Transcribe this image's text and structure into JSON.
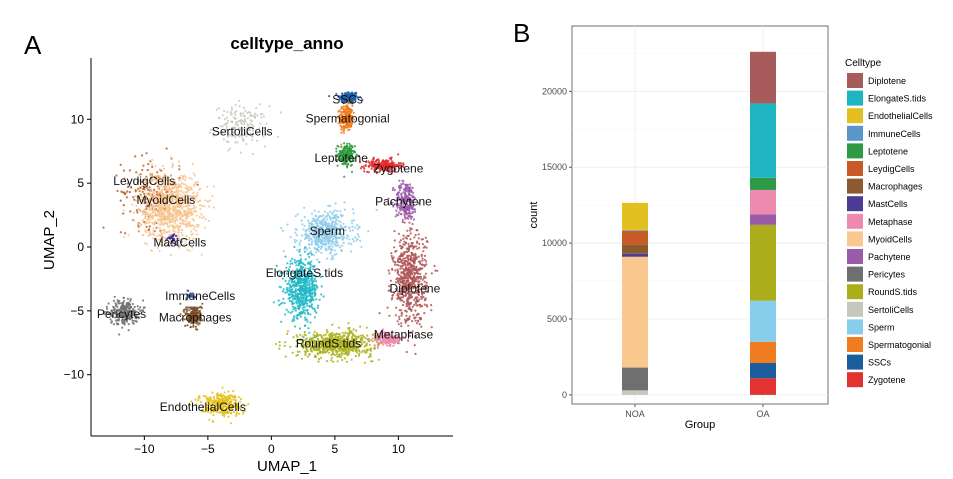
{
  "chart_data": [
    {
      "type": "scatter",
      "panel_label": "A",
      "title": "celltype_anno",
      "xlabel": "UMAP_1",
      "ylabel": "UMAP_2",
      "xlim": [
        -14.2,
        14.3
      ],
      "ylim": [
        -14.8,
        14.8
      ],
      "x_ticks": [
        -10,
        -5,
        0,
        5,
        10
      ],
      "x_tick_labels": [
        "−10",
        "−5",
        "0",
        "5",
        "10"
      ],
      "y_ticks": [
        10,
        5,
        0,
        -5,
        -10
      ],
      "y_tick_labels": [
        "10",
        "5",
        "0",
        "−5",
        "−10"
      ],
      "grid": false,
      "clusters": [
        {
          "name": "SSCs",
          "label": "SSCs",
          "color": "#1F5FA8",
          "center": [
            6.1,
            11.7
          ],
          "spread": [
            0.7,
            0.45
          ],
          "n": 160
        },
        {
          "name": "Spermatogonial",
          "label": "Spermatogonial",
          "color": "#F07A1A",
          "center": [
            5.9,
            10.1
          ],
          "spread": [
            0.45,
            0.9
          ],
          "n": 220
        },
        {
          "name": "SertoliCells",
          "label": "SertoliCells",
          "color": "#C9C9C3",
          "center": [
            -2.4,
            9.5
          ],
          "spread": [
            1.9,
            1.4
          ],
          "n": 170
        },
        {
          "name": "Leptotene",
          "label": "Leptotene",
          "color": "#2A9A3A",
          "center": [
            5.9,
            7.2
          ],
          "spread": [
            0.6,
            0.8
          ],
          "n": 170
        },
        {
          "name": "Zygotene",
          "label": "Zygotene",
          "color": "#E02A2A",
          "center": [
            8.8,
            6.4
          ],
          "spread": [
            1.3,
            0.45
          ],
          "n": 200
        },
        {
          "name": "Pachytene",
          "label": "Pachytene",
          "color": "#9B5BAA",
          "center": [
            10.6,
            3.6
          ],
          "spread": [
            0.8,
            1.4
          ],
          "n": 240
        },
        {
          "name": "LeydigCells",
          "label": "LeydigCells",
          "color": "#BE5A26",
          "center": [
            -9.5,
            4.3
          ],
          "spread": [
            2.1,
            2.4
          ],
          "n": 170
        },
        {
          "name": "MyoidCells",
          "label": "MyoidCells",
          "color": "#F7C58F",
          "center": [
            -8.0,
            3.2
          ],
          "spread": [
            2.2,
            2.4
          ],
          "n": 900
        },
        {
          "name": "MastCells",
          "label": "MastCells",
          "color": "#3B2C8C",
          "center": [
            -7.8,
            0.6
          ],
          "spread": [
            0.5,
            0.4
          ],
          "n": 30
        },
        {
          "name": "Sperm",
          "label": "Sperm",
          "color": "#8FCCEA",
          "center": [
            4.3,
            1.1
          ],
          "spread": [
            2.0,
            1.5
          ],
          "n": 500
        },
        {
          "name": "ElongateS.tids",
          "label": "ElongateS.tids",
          "color": "#20B8C6",
          "center": [
            2.4,
            -3.3
          ],
          "spread": [
            1.2,
            2.0
          ],
          "n": 560
        },
        {
          "name": "Diplotene",
          "label": "Diplotene",
          "color": "#AF5656",
          "center": [
            10.9,
            -2.5
          ],
          "spread": [
            1.2,
            3.3
          ],
          "n": 650
        },
        {
          "name": "Metaphase",
          "label": "Metaphase",
          "color": "#EC8BB0",
          "center": [
            9.1,
            -7.2
          ],
          "spread": [
            1.0,
            0.5
          ],
          "n": 180
        },
        {
          "name": "RoundS.tids",
          "label": "RoundS.tids",
          "color": "#AEB21E",
          "center": [
            5.0,
            -7.6
          ],
          "spread": [
            2.7,
            0.9
          ],
          "n": 650
        },
        {
          "name": "ImmuneCells",
          "label": "ImmuneCells",
          "color": "#3E5EA0",
          "center": [
            -6.3,
            -3.8
          ],
          "spread": [
            0.3,
            0.3
          ],
          "n": 25
        },
        {
          "name": "Macrophages",
          "label": "Macrophages",
          "color": "#7B4F24",
          "center": [
            -6.1,
            -5.4
          ],
          "spread": [
            0.6,
            0.8
          ],
          "n": 180
        },
        {
          "name": "Pericytes",
          "label": "Pericytes",
          "color": "#6E6E6E",
          "center": [
            -11.6,
            -5.1
          ],
          "spread": [
            1.0,
            0.9
          ],
          "n": 230
        },
        {
          "name": "EndothelialCells",
          "label": "EndothelialCells",
          "color": "#E3BF1B",
          "center": [
            -4.0,
            -12.3
          ],
          "spread": [
            1.5,
            0.8
          ],
          "n": 300
        }
      ],
      "annotations": [
        {
          "text": "SSCs",
          "x": 6.0,
          "y": 11.5
        },
        {
          "text": "Spermatogonial",
          "x": 6.0,
          "y": 10.0
        },
        {
          "text": "SertoliCells",
          "x": -2.3,
          "y": 9.0
        },
        {
          "text": "Leptotene",
          "x": 5.5,
          "y": 6.9
        },
        {
          "text": "Zygotene",
          "x": 10.0,
          "y": 6.1
        },
        {
          "text": "LeydigCells",
          "x": -10.0,
          "y": 5.1
        },
        {
          "text": "MyoidCells",
          "x": -8.3,
          "y": 3.6
        },
        {
          "text": "Pachytene",
          "x": 10.4,
          "y": 3.5
        },
        {
          "text": "Sperm",
          "x": 4.4,
          "y": 1.2
        },
        {
          "text": "MastCells",
          "x": -7.2,
          "y": 0.3
        },
        {
          "text": "ElongateS.tids",
          "x": 2.6,
          "y": -2.1
        },
        {
          "text": "Diplotene",
          "x": 11.3,
          "y": -3.3
        },
        {
          "text": "ImmuneCells",
          "x": -5.6,
          "y": -3.9
        },
        {
          "text": "Pericytes",
          "x": -11.8,
          "y": -5.3
        },
        {
          "text": "Macrophages",
          "x": -6.0,
          "y": -5.6
        },
        {
          "text": "Metaphase",
          "x": 10.4,
          "y": -6.9
        },
        {
          "text": "RoundS.tids",
          "x": 4.5,
          "y": -7.6
        },
        {
          "text": "EndothelialCells",
          "x": -5.4,
          "y": -12.6
        }
      ]
    },
    {
      "type": "bar",
      "stacked": true,
      "panel_label": "B",
      "xlabel": "Group",
      "ylabel": "count",
      "categories": [
        "NOA",
        "OA"
      ],
      "ylim": [
        -600,
        24300
      ],
      "y_ticks": [
        0,
        5000,
        10000,
        15000,
        20000
      ],
      "y_tick_labels": [
        "0",
        "5000",
        "10000",
        "15000",
        "20000"
      ],
      "grid": true,
      "legend_title": "Celltype",
      "legend_position": "right",
      "series": [
        {
          "name": "Diplotene",
          "color": "#A85B5B",
          "values": [
            0,
            3400
          ]
        },
        {
          "name": "ElongateS.tids",
          "color": "#1FB4C1",
          "values": [
            0,
            4900
          ]
        },
        {
          "name": "EndothelialCells",
          "color": "#E3C021",
          "values": [
            1800,
            0
          ]
        },
        {
          "name": "ImmuneCells",
          "color": "#5A97C8",
          "values": [
            50,
            0
          ]
        },
        {
          "name": "Leptotene",
          "color": "#2D9A45",
          "values": [
            0,
            800
          ]
        },
        {
          "name": "LeydigCells",
          "color": "#C85A28",
          "values": [
            900,
            0
          ]
        },
        {
          "name": "Macrophages",
          "color": "#8B5A2E",
          "values": [
            600,
            0
          ]
        },
        {
          "name": "MastCells",
          "color": "#4C3C94",
          "values": [
            200,
            0
          ]
        },
        {
          "name": "Metaphase",
          "color": "#EE8AAE",
          "values": [
            0,
            1600
          ]
        },
        {
          "name": "MyoidCells",
          "color": "#F8C88E",
          "values": [
            7300,
            0
          ]
        },
        {
          "name": "Pachytene",
          "color": "#9C5BA8",
          "values": [
            0,
            700
          ]
        },
        {
          "name": "Pericytes",
          "color": "#6F6F6F",
          "values": [
            1500,
            0
          ]
        },
        {
          "name": "RoundS.tids",
          "color": "#ABAE1A",
          "values": [
            0,
            5000
          ]
        },
        {
          "name": "SertoliCells",
          "color": "#C6C8BE",
          "values": [
            300,
            0
          ]
        },
        {
          "name": "Sperm",
          "color": "#87CDEC",
          "values": [
            0,
            2700
          ]
        },
        {
          "name": "Spermatogonial",
          "color": "#EF7D20",
          "values": [
            0,
            1400
          ]
        },
        {
          "name": "SSCs",
          "color": "#1A5E9E",
          "values": [
            0,
            1000
          ]
        },
        {
          "name": "Zygotene",
          "color": "#E23232",
          "values": [
            0,
            1100
          ]
        }
      ]
    }
  ]
}
